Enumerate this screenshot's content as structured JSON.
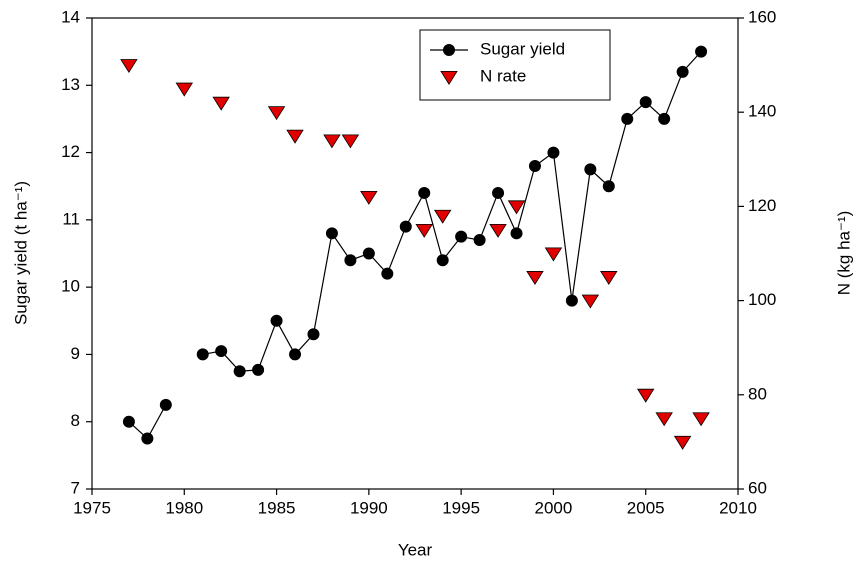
{
  "chart_data": {
    "type": "line",
    "xlabel": "Year",
    "ylabel": "Sugar yield (t ha⁻¹)",
    "y2label": "N (kg ha⁻¹)",
    "xlim": [
      1975,
      2010
    ],
    "xticks": [
      1975,
      1980,
      1985,
      1990,
      1995,
      2000,
      2005,
      2010
    ],
    "ylim": [
      7,
      14
    ],
    "yticks": [
      7,
      8,
      9,
      10,
      11,
      12,
      13,
      14
    ],
    "y2lim": [
      60,
      160
    ],
    "y2ticks": [
      60,
      80,
      100,
      120,
      140,
      160
    ],
    "legend": "top-center",
    "series": [
      {
        "name": "Sugar yield",
        "color": "#000000",
        "marker": "circle",
        "line": true,
        "axis": "y",
        "x": [
          1977,
          1978,
          1979,
          1980,
          1981,
          1982,
          1983,
          1984,
          1985,
          1986,
          1987,
          1988,
          1989,
          1990,
          1991,
          1992,
          1993,
          1994,
          1995,
          1996,
          1997,
          1998,
          1999,
          2000,
          2001,
          2002,
          2003,
          2004,
          2005,
          2006,
          2007,
          2008
        ],
        "values": [
          8.0,
          7.75,
          8.25,
          null,
          9.0,
          9.05,
          8.75,
          8.77,
          9.5,
          9.0,
          9.3,
          10.8,
          10.4,
          10.5,
          10.2,
          10.9,
          11.4,
          10.4,
          10.75,
          10.7,
          11.4,
          10.8,
          11.8,
          12.0,
          9.8,
          11.75,
          11.5,
          12.5,
          12.75,
          12.5,
          13.2,
          13.5
        ]
      },
      {
        "name": "N rate",
        "color": "#e00000",
        "marker": "triangle-down",
        "line": false,
        "axis": "y2",
        "x": [
          1977,
          1980,
          1982,
          1985,
          1986,
          1988,
          1989,
          1990,
          1993,
          1994,
          1997,
          1998,
          1999,
          2000,
          2002,
          2003,
          2005,
          2006,
          2007,
          2008
        ],
        "values": [
          150,
          145,
          142,
          140,
          135,
          134,
          134,
          122,
          115,
          118,
          115,
          120,
          105,
          110,
          100,
          105,
          80,
          75,
          70,
          75
        ]
      }
    ]
  }
}
